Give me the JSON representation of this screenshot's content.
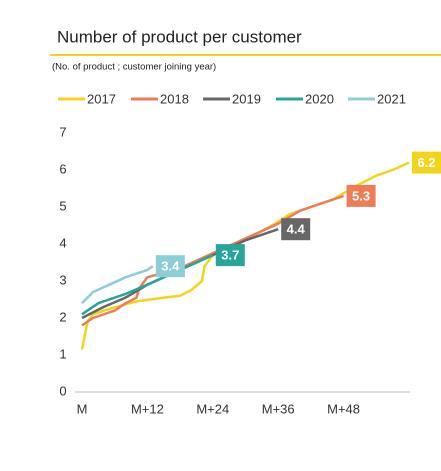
{
  "chart_data": {
    "type": "line",
    "title": "Number of product per customer",
    "subtitle": "(No. of product ; customer joining year)",
    "xlim": [
      0,
      60
    ],
    "ylim": [
      0,
      7
    ],
    "xticks": [
      {
        "value": 0,
        "label": "M"
      },
      {
        "value": 12,
        "label": "M+12"
      },
      {
        "value": 24,
        "label": "M+24"
      },
      {
        "value": 36,
        "label": "M+36"
      },
      {
        "value": 48,
        "label": "M+48"
      }
    ],
    "yticks": [
      0,
      1,
      2,
      3,
      4,
      5,
      6,
      7
    ],
    "grid": false,
    "legend": "top",
    "series": [
      {
        "name": "2017",
        "color": "#f2d41c",
        "x": [
          0,
          1,
          2,
          5,
          10,
          15,
          18,
          20,
          22,
          22.5,
          24,
          30,
          36,
          38,
          42,
          46,
          50,
          54,
          57,
          60
        ],
        "values": [
          1.15,
          1.9,
          2.1,
          2.25,
          2.45,
          2.55,
          2.6,
          2.75,
          3.0,
          3.4,
          3.7,
          4.1,
          4.6,
          4.8,
          5.0,
          5.2,
          5.55,
          5.85,
          6.0,
          6.2
        ]
      },
      {
        "name": "2018",
        "color": "#ec7d57",
        "x": [
          0,
          2,
          6,
          8,
          10,
          10.5,
          12,
          18,
          24,
          30,
          36,
          40,
          44,
          48
        ],
        "values": [
          1.8,
          2.0,
          2.2,
          2.4,
          2.55,
          2.8,
          3.1,
          3.35,
          3.75,
          4.15,
          4.55,
          4.9,
          5.1,
          5.3
        ]
      },
      {
        "name": "2019",
        "color": "#676767",
        "x": [
          0,
          4,
          8,
          12,
          18,
          24,
          30,
          36
        ],
        "values": [
          2.0,
          2.3,
          2.55,
          2.9,
          3.3,
          3.7,
          4.1,
          4.4
        ]
      },
      {
        "name": "2020",
        "color": "#28a59a",
        "x": [
          0,
          3,
          8,
          12,
          18,
          24
        ],
        "values": [
          2.1,
          2.4,
          2.65,
          2.9,
          3.3,
          3.7
        ]
      },
      {
        "name": "2021",
        "color": "#8ccdd6",
        "x": [
          0,
          2,
          5,
          8,
          12,
          13
        ],
        "values": [
          2.4,
          2.7,
          2.9,
          3.1,
          3.3,
          3.4
        ]
      }
    ]
  }
}
